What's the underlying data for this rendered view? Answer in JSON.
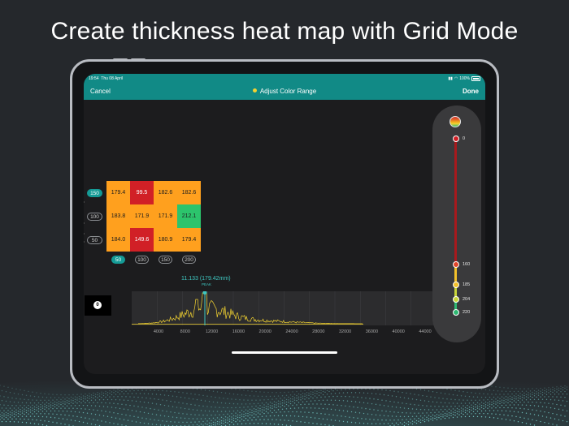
{
  "headline": "Create thickness heat map with Grid Mode",
  "statusbar": {
    "time": "19:54",
    "date": "Thu 08 April",
    "battery": "100%"
  },
  "navbar": {
    "cancel": "Cancel",
    "title": "Adjust Color Range",
    "done": "Done"
  },
  "grid": {
    "rows": [
      {
        "label": "150",
        "active": true,
        "cells": [
          {
            "value": "179.4",
            "color": "#ffa01e"
          },
          {
            "value": "99.5",
            "color": "#d12026"
          },
          {
            "value": "182.6",
            "color": "#ffa01e"
          },
          {
            "value": "182.6",
            "color": "#ffa01e"
          }
        ]
      },
      {
        "label": "100",
        "active": false,
        "cells": [
          {
            "value": "183.8",
            "color": "#ffa01e"
          },
          {
            "value": "171.9",
            "color": "#ffa01e"
          },
          {
            "value": "171.9",
            "color": "#ffa01e"
          },
          {
            "value": "212.1",
            "color": "#2cc46c"
          }
        ]
      },
      {
        "label": "50",
        "active": false,
        "cells": [
          {
            "value": "184.0",
            "color": "#ffa01e"
          },
          {
            "value": "149.6",
            "color": "#d12026"
          },
          {
            "value": "180.9",
            "color": "#ffa01e"
          },
          {
            "value": "179.4",
            "color": "#ffa01e"
          }
        ]
      }
    ],
    "columns": [
      {
        "label": "50",
        "active": true
      },
      {
        "label": "100",
        "active": false
      },
      {
        "label": "150",
        "active": false
      },
      {
        "label": "200",
        "active": false
      }
    ]
  },
  "histogram": {
    "zero_badge": "0",
    "peak_value": "11.133 (179.42mm)",
    "peak_caption": "PEAK",
    "x_ticks": [
      "4000",
      "8000",
      "12000",
      "16000",
      "20000",
      "24000",
      "28000",
      "32000",
      "36000",
      "40000",
      "44000"
    ],
    "line_color": "#f3d331",
    "peak_color": "#3fc8c2"
  },
  "color_range": {
    "icon": "rainbow-gradient-icon",
    "thresholds": [
      {
        "value": "0",
        "color": "#d12026"
      },
      {
        "value": "160",
        "color": "#e0452a"
      },
      {
        "value": "185",
        "color": "#f3c12a"
      },
      {
        "value": "204",
        "color": "#c8d63a"
      },
      {
        "value": "220",
        "color": "#2eb872"
      }
    ]
  },
  "colors": {
    "accent": "#118a86",
    "background": "#25282c"
  }
}
